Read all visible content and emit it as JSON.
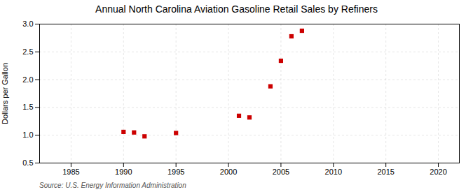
{
  "chart_data": {
    "type": "scatter",
    "title": "Annual North Carolina Aviation Gasoline Retail Sales by Refiners",
    "ylabel": "Dollars per Gallon",
    "source": "Source: U.S. Energy Information Administration",
    "x": [
      1990,
      1991,
      1992,
      1995,
      2001,
      2002,
      2004,
      2005,
      2006,
      2007
    ],
    "y": [
      1.06,
      1.05,
      0.98,
      1.04,
      1.35,
      1.32,
      1.88,
      2.34,
      2.78,
      2.88
    ],
    "color": "#cc0000",
    "marker": "square",
    "xlim": [
      1982,
      2022
    ],
    "xticks": [
      1985,
      1990,
      1995,
      2000,
      2005,
      2010,
      2015,
      2020
    ],
    "ylim": [
      0.5,
      3.0
    ],
    "yticks": [
      0.5,
      {
        "value": 1,
        "label": "1.0"
      },
      1.5,
      {
        "value": 2,
        "label": "2.0"
      },
      2.5,
      {
        "value": 3,
        "label": "3.0"
      }
    ],
    "grid": true
  }
}
